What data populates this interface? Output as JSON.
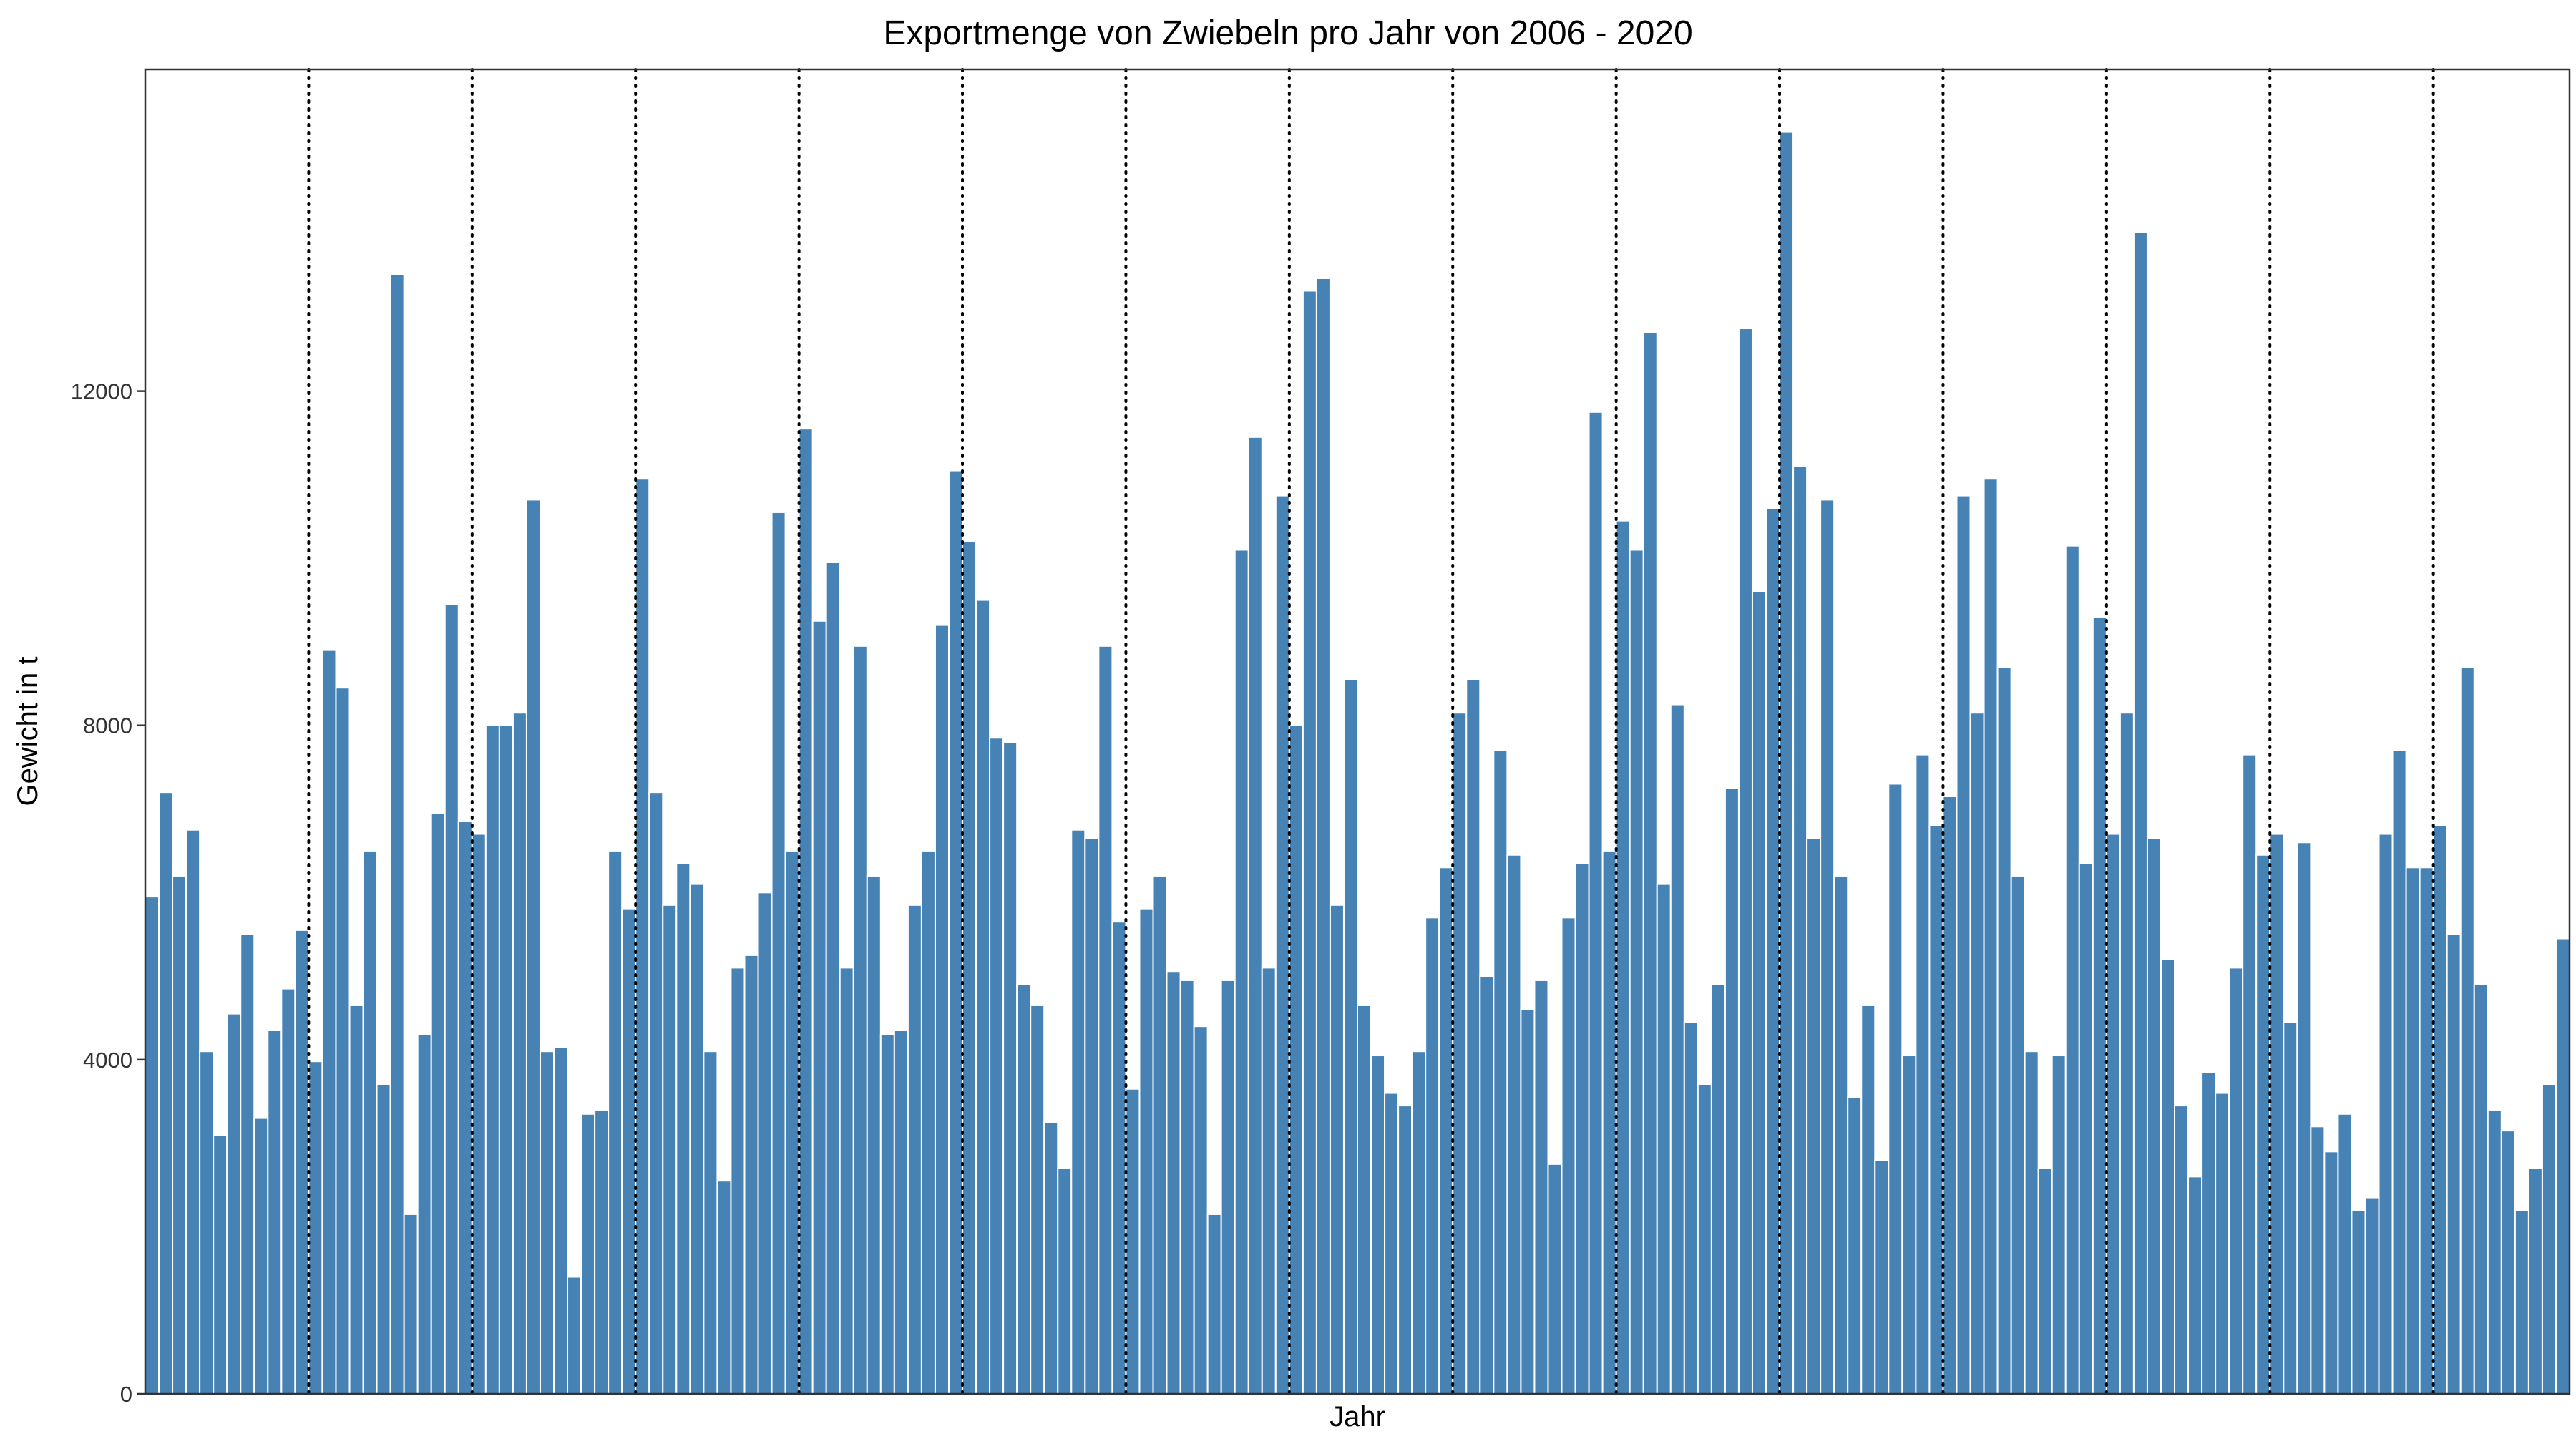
{
  "chart_data": {
    "type": "bar",
    "title": "Exportmenge von Zwiebeln pro Jahr von 2006 - 2020",
    "xlabel": "Jahr",
    "ylabel": "Gewicht in t",
    "ylim": [
      0,
      15850
    ],
    "yticks": [
      0,
      4000,
      8000,
      12000
    ],
    "grid": false,
    "bar_color": "#4682b4",
    "year_separator_style": "dotted vertical lines between years (every 12 months)",
    "months_per_year": 12,
    "values": [
      5950,
      7200,
      6200,
      6750,
      4100,
      3100,
      4550,
      5500,
      3300,
      4350,
      4850,
      5550,
      3980,
      8900,
      8450,
      4650,
      6500,
      3700,
      13400,
      2150,
      4300,
      6950,
      9450,
      6850,
      6700,
      8000,
      8000,
      8150,
      10700,
      4100,
      4150,
      1400,
      3350,
      3400,
      6500,
      5800,
      10950,
      7200,
      5850,
      6350,
      6100,
      4100,
      2550,
      5100,
      5250,
      6000,
      10550,
      6500,
      11550,
      9250,
      9950,
      5100,
      8950,
      6200,
      4300,
      4350,
      5850,
      6500,
      9200,
      11050,
      10200,
      9500,
      7850,
      7800,
      4900,
      4650,
      3250,
      2700,
      6750,
      6650,
      8950,
      5650,
      3650,
      5800,
      6200,
      5050,
      4950,
      4400,
      2150,
      4950,
      10100,
      11450,
      5100,
      10750,
      8000,
      13200,
      13350,
      5850,
      8550,
      4650,
      4050,
      3600,
      3450,
      4100,
      5700,
      6300,
      8150,
      8550,
      5000,
      7700,
      6450,
      4600,
      4950,
      2750,
      5700,
      6350,
      11750,
      6500,
      10450,
      10100,
      12700,
      6100,
      8250,
      4450,
      3700,
      4900,
      7250,
      12750,
      9600,
      10600,
      15100,
      11100,
      6650,
      10700,
      6200,
      3550,
      4650,
      2800,
      7300,
      4050,
      7650,
      6800,
      7150,
      10750,
      8150,
      10950,
      8700,
      6200,
      4100,
      2700,
      4050,
      10150,
      6350,
      9300,
      6700,
      8150,
      13900,
      6650,
      5200,
      3450,
      2600,
      3850,
      3600,
      5100,
      7650,
      6450,
      6700,
      4450,
      6600,
      3200,
      2900,
      3350,
      2200,
      2350,
      6700,
      7700,
      6300,
      6300,
      6800,
      5500,
      8700,
      4900,
      3400,
      3150,
      2200,
      2700,
      3700,
      5450
    ]
  }
}
